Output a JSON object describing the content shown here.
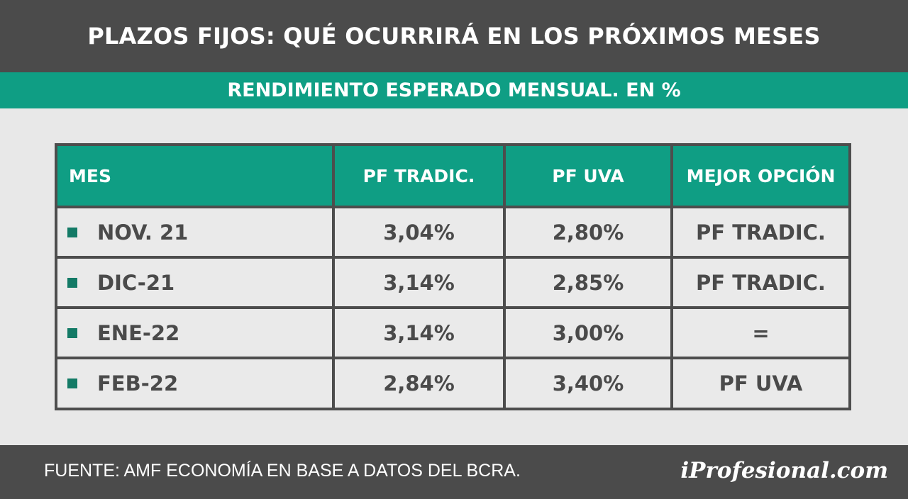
{
  "header": {
    "title": "PLAZOS FIJOS: QUÉ OCURRIRÁ EN LOS PRÓXIMOS MESES"
  },
  "subtitle": {
    "text": "RENDIMIENTO ESPERADO MENSUAL. EN %"
  },
  "colors": {
    "header_bg": "#4b4b4b",
    "accent_green": "#0f9e84",
    "bullet_green": "#137a66",
    "cell_bg": "#eaeaea",
    "text_dark": "#4a4a4a"
  },
  "chart_data": {
    "type": "table",
    "columns": [
      "MES",
      "PF TRADIC.",
      "PF UVA",
      "MEJOR OPCIÓN"
    ],
    "rows": [
      [
        "NOV. 21",
        "3,04%",
        "2,80%",
        "PF TRADIC."
      ],
      [
        "DIC-21",
        "3,14%",
        "2,85%",
        "PF TRADIC."
      ],
      [
        "ENE-22",
        "3,14%",
        "3,00%",
        "="
      ],
      [
        "FEB-22",
        "2,84%",
        "3,40%",
        "PF UVA"
      ]
    ],
    "values": {
      "pf_tradic": [
        3.04,
        3.14,
        3.14,
        2.84
      ],
      "pf_uva": [
        2.8,
        2.85,
        3.0,
        3.4
      ]
    }
  },
  "footer": {
    "source": "FUENTE: AMF ECONOMÍA EN BASE A DATOS DEL BCRA.",
    "logo": "iProfesional.com"
  }
}
